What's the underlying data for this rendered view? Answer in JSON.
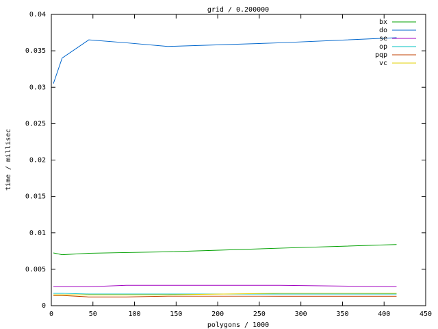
{
  "chart_data": {
    "type": "line",
    "title": "grid / 0.200000",
    "xlabel": "polygons / 1000",
    "ylabel": "time / millisec",
    "x": [
      2.5,
      13,
      45,
      90,
      140,
      275,
      415
    ],
    "series": [
      {
        "name": "bx",
        "color": "#00a000",
        "values": [
          0.00725,
          0.007,
          0.0072,
          0.0073,
          0.0074,
          0.0079,
          0.0084
        ]
      },
      {
        "name": "do",
        "color": "#0066cc",
        "values": [
          0.0305,
          0.034,
          0.0365,
          0.0361,
          0.0356,
          0.0361,
          0.0368
        ]
      },
      {
        "name": "se",
        "color": "#a000c0",
        "values": [
          0.0026,
          0.0026,
          0.0026,
          0.0028,
          0.0028,
          0.0028,
          0.0026
        ]
      },
      {
        "name": "op",
        "color": "#00c0c0",
        "values": [
          0.0017,
          0.0017,
          0.0016,
          0.0016,
          0.0016,
          0.0016,
          0.0016
        ]
      },
      {
        "name": "pqp",
        "color": "#c04000",
        "values": [
          0.0014,
          0.0014,
          0.0012,
          0.0012,
          0.0013,
          0.0013,
          0.0013
        ]
      },
      {
        "name": "vc",
        "color": "#e0d000",
        "values": [
          0.0015,
          0.0015,
          0.0015,
          0.0015,
          0.0015,
          0.0017,
          0.0017
        ]
      }
    ],
    "xlim": [
      0,
      450
    ],
    "xticks": [
      0,
      50,
      100,
      150,
      200,
      250,
      300,
      350,
      400,
      450
    ],
    "ylim": [
      0,
      0.04
    ],
    "yticks": [
      0,
      0.005,
      0.01,
      0.015,
      0.02,
      0.025,
      0.03,
      0.035,
      0.04
    ],
    "legend": "top right",
    "grid": false
  }
}
